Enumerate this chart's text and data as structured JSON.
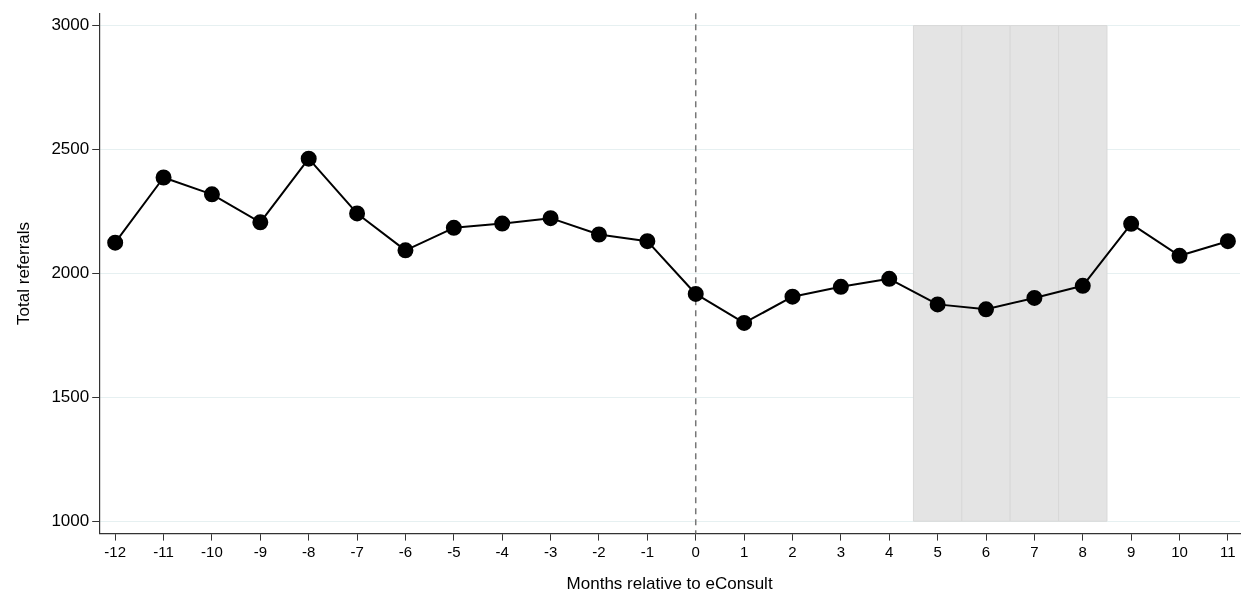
{
  "chart_data": {
    "type": "line",
    "xlabel": "Months relative to eConsult",
    "ylabel": "Total referrals",
    "x": [
      -12,
      -11,
      -10,
      -9,
      -8,
      -7,
      -6,
      -5,
      -4,
      -3,
      -2,
      -1,
      0,
      1,
      2,
      3,
      4,
      5,
      6,
      7,
      8,
      9,
      10,
      11
    ],
    "series": [
      {
        "color": "#000000",
        "values": [
          2124,
          2387,
          2319,
          2206,
          2463,
          2242,
          2093,
          2184,
          2201,
          2223,
          2157,
          2130,
          1917,
          1800,
          1906,
          1946,
          1978,
          1875,
          1855,
          1901,
          1950,
          2200,
          2071,
          2130
        ]
      }
    ],
    "xlim": [
      -12.33,
      11.25
    ],
    "xticks": [
      -12,
      -11,
      -10,
      -9,
      -8,
      -7,
      -6,
      -5,
      -4,
      -3,
      -2,
      -1,
      0,
      1,
      2,
      3,
      4,
      5,
      6,
      7,
      8,
      9,
      10,
      11
    ],
    "ylim": [
      950,
      3050
    ],
    "yticks": [
      1000,
      1500,
      2000,
      2500,
      3000
    ],
    "grid": "y",
    "marker": "circle",
    "line_style": "solid",
    "legend": false,
    "ref_lines": [
      {
        "axis": "x",
        "value": 0,
        "color": "#777777",
        "line_style": "dashed"
      }
    ],
    "bands": [
      {
        "axis": "x",
        "from": 4.5,
        "to": 5.5,
        "color": "#e4e4e4"
      },
      {
        "axis": "x",
        "from": 5.5,
        "to": 6.5,
        "color": "#e4e4e4"
      },
      {
        "axis": "x",
        "from": 6.5,
        "to": 7.5,
        "color": "#e4e4e4"
      },
      {
        "axis": "x",
        "from": 7.5,
        "to": 8.5,
        "color": "#e4e4e4"
      }
    ]
  }
}
